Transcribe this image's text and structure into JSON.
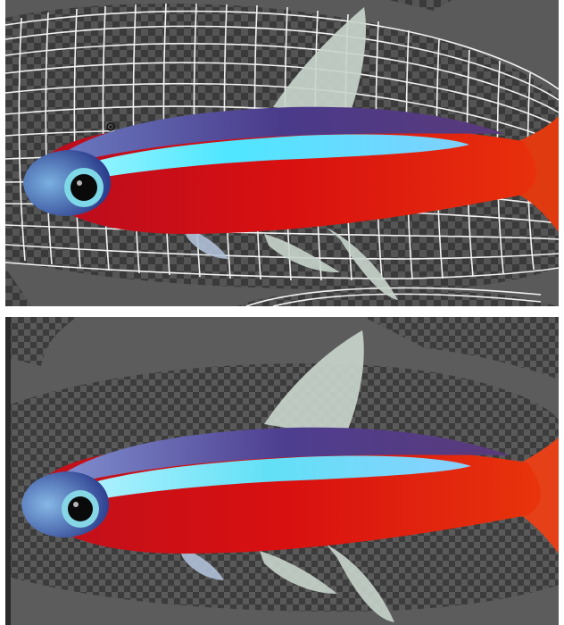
{
  "panels": [
    {
      "id": "top",
      "view": "mesh-wireframe"
    },
    {
      "id": "bottom",
      "view": "mask-result"
    }
  ],
  "colors": {
    "background_gray": "#5c5c5c",
    "checker_dark": "#3a3a3a",
    "checker_light": "#555555",
    "mesh_line": "#f2f2f2",
    "fish_red": "#d81010",
    "fish_stripe": "#4fe6ff",
    "fish_back": "#4a3a8a",
    "fin": "#c8d4cc"
  }
}
